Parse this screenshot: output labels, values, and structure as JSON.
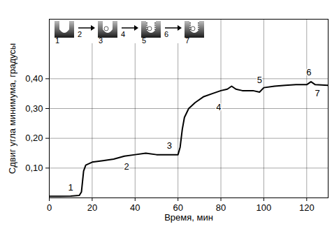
{
  "chart_data": {
    "type": "line",
    "x_label": "Время, мин",
    "y_label": "Сдвиг угла минимума, градусы",
    "x": [
      0,
      5,
      10,
      14,
      15,
      16,
      17,
      20,
      25,
      30,
      35,
      40,
      45,
      50,
      55,
      60,
      61,
      62,
      63,
      65,
      68,
      72,
      76,
      80,
      83,
      85,
      87,
      90,
      95,
      98,
      100,
      105,
      110,
      115,
      120,
      122,
      124,
      130
    ],
    "values": [
      0.005,
      0.005,
      0.006,
      0.008,
      0.02,
      0.09,
      0.11,
      0.12,
      0.125,
      0.13,
      0.14,
      0.145,
      0.15,
      0.145,
      0.145,
      0.145,
      0.17,
      0.23,
      0.27,
      0.3,
      0.32,
      0.34,
      0.35,
      0.36,
      0.365,
      0.375,
      0.365,
      0.36,
      0.36,
      0.355,
      0.37,
      0.375,
      0.378,
      0.38,
      0.38,
      0.39,
      0.38,
      0.378
    ],
    "color": "#000000",
    "xlim": [
      0,
      130
    ],
    "xticks": [
      0,
      20,
      40,
      60,
      80,
      100,
      120
    ],
    "ylim": [
      0,
      0.6
    ],
    "yticks": [
      {
        "value": 0.1,
        "label": "0,10"
      },
      {
        "value": 0.2,
        "label": "0,20"
      },
      {
        "value": 0.3,
        "label": "0,30"
      },
      {
        "value": 0.4,
        "label": "0,40"
      }
    ],
    "grid": true,
    "annotations": [
      {
        "text": "1",
        "x": 10,
        "y": 0.035
      },
      {
        "text": "2",
        "x": 36,
        "y": 0.105
      },
      {
        "text": "3",
        "x": 56,
        "y": 0.175
      },
      {
        "text": "4",
        "x": 79,
        "y": 0.305
      },
      {
        "text": "5",
        "x": 98,
        "y": 0.395
      },
      {
        "text": "6",
        "x": 121,
        "y": 0.42
      },
      {
        "text": "7",
        "x": 125,
        "y": 0.35
      }
    ],
    "inset_labels": [
      "1",
      "2",
      "3",
      "4",
      "5",
      "6",
      "7"
    ]
  }
}
